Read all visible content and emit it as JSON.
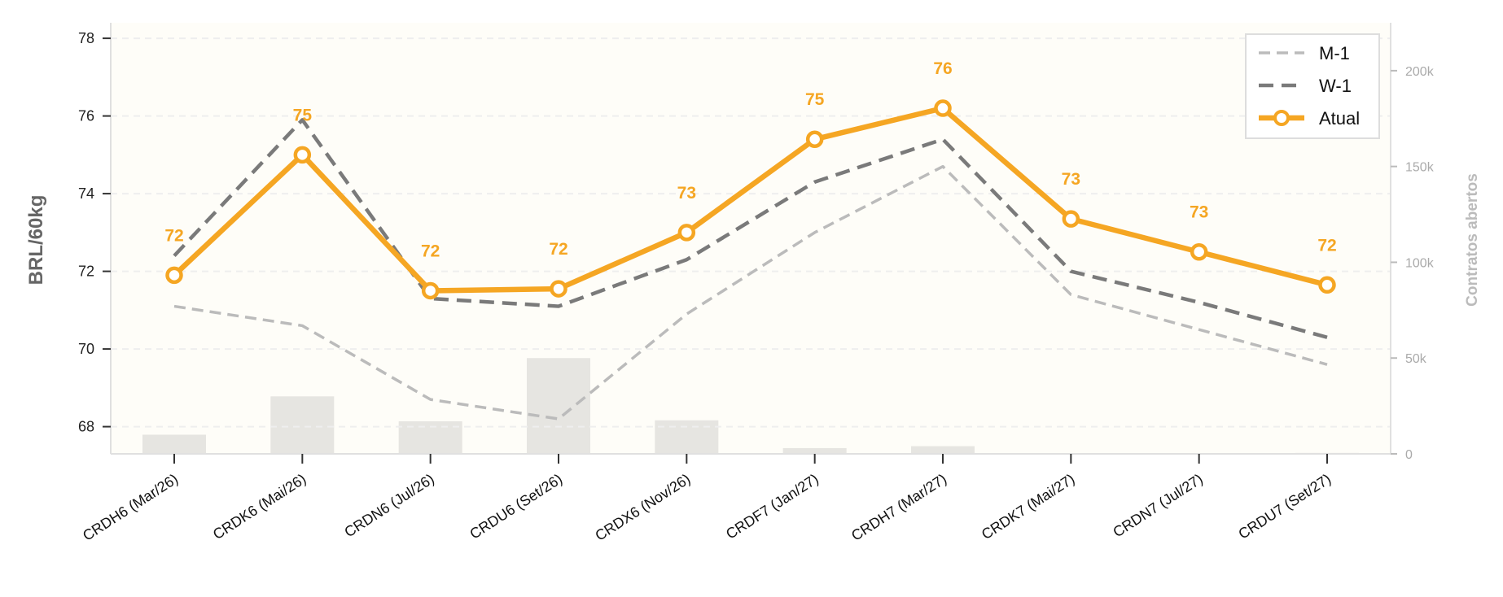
{
  "chart_data": {
    "type": "line",
    "ylabel": "BRL/60kg",
    "y2label": "Contratos abertos",
    "ylim": [
      67.3,
      78.4
    ],
    "y2lim": [
      0,
      225000
    ],
    "yticks": [
      68,
      70,
      72,
      74,
      76,
      78
    ],
    "y2ticks": [
      {
        "value": 0,
        "label": "0"
      },
      {
        "value": 50000,
        "label": "50k"
      },
      {
        "value": 100000,
        "label": "100k"
      },
      {
        "value": 150000,
        "label": "150k"
      },
      {
        "value": 200000,
        "label": "200k"
      }
    ],
    "grid": true,
    "legend_position": "top-right",
    "categories": [
      "CRDH6 (Mar/26)",
      "CRDK6 (Mai/26)",
      "CRDN6 (Jul/26)",
      "CRDU6 (Set/26)",
      "CRDX6 (Nov/26)",
      "CRDF7 (Jan/27)",
      "CRDH7 (Mar/27)",
      "CRDK7 (Mai/27)",
      "CRDN7 (Jul/27)",
      "CRDU7 (Set/27)"
    ],
    "series": [
      {
        "name": "M-1",
        "values": [
          71.1,
          70.6,
          68.7,
          68.2,
          70.9,
          73.0,
          74.7,
          71.4,
          70.5,
          69.6
        ],
        "color": "#bbbbbb",
        "style": "dashed-thin"
      },
      {
        "name": "W-1",
        "values": [
          72.4,
          75.9,
          71.3,
          71.1,
          72.3,
          74.3,
          75.4,
          72.0,
          71.2,
          70.3
        ],
        "color": "#7a7a7a",
        "style": "dashed"
      },
      {
        "name": "Atual",
        "values": [
          71.9,
          75.0,
          71.5,
          71.55,
          73.0,
          75.4,
          76.2,
          73.35,
          72.5,
          71.65
        ],
        "color": "#f5a623",
        "style": "solid-markers"
      }
    ],
    "data_labels": [
      "72",
      "75",
      "72",
      "72",
      "73",
      "75",
      "76",
      "73",
      "73",
      "72"
    ],
    "open_interest": [
      10000,
      30000,
      17000,
      50000,
      17500,
      3000,
      4000,
      0,
      0,
      500
    ]
  }
}
